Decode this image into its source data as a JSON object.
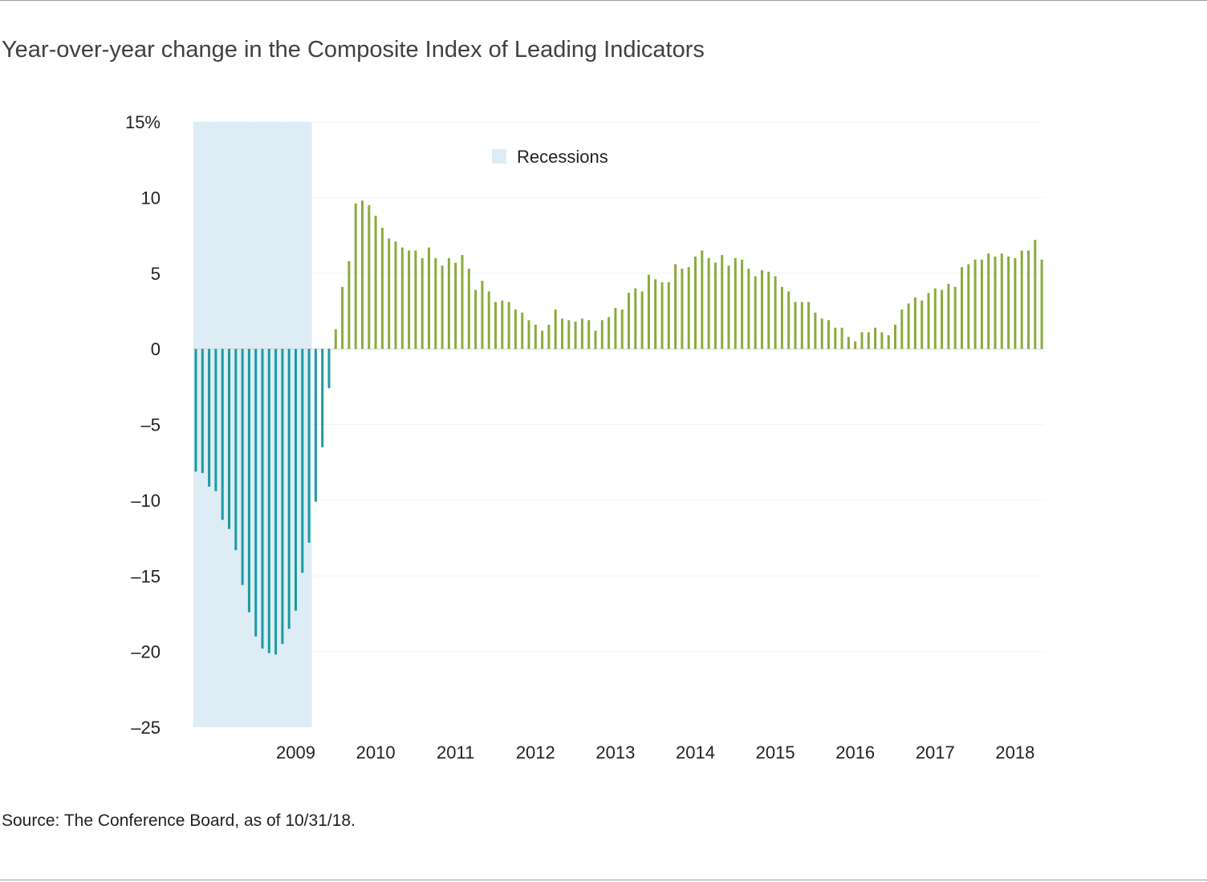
{
  "title": "Year-over-year change in the Composite Index of Leading Indicators",
  "source": "Source: The Conference Board, as of 10/31/18.",
  "colors": {
    "negative": "#1a9aa0",
    "positive": "#8aab3c",
    "recession": "#deedf5",
    "grid": "#e6e6e6"
  },
  "chart_data": {
    "type": "bar",
    "ylim": [
      -25,
      15
    ],
    "y_ticks": [
      {
        "value": 15,
        "label": "15%"
      },
      {
        "value": 10,
        "label": "10"
      },
      {
        "value": 5,
        "label": "5"
      },
      {
        "value": 0,
        "label": "0"
      },
      {
        "value": -5,
        "label": "–5"
      },
      {
        "value": -10,
        "label": "–10"
      },
      {
        "value": -15,
        "label": "–15"
      },
      {
        "value": -20,
        "label": "–20"
      },
      {
        "value": -25,
        "label": "–25"
      }
    ],
    "x_ticks": [
      {
        "index": 15,
        "label": "2009"
      },
      {
        "index": 27,
        "label": "2010"
      },
      {
        "index": 39,
        "label": "2011"
      },
      {
        "index": 51,
        "label": "2012"
      },
      {
        "index": 63,
        "label": "2013"
      },
      {
        "index": 75,
        "label": "2014"
      },
      {
        "index": 87,
        "label": "2015"
      },
      {
        "index": 99,
        "label": "2016"
      },
      {
        "index": 111,
        "label": "2017"
      },
      {
        "index": 123,
        "label": "2018"
      }
    ],
    "recession": {
      "start_index": 0,
      "end_index": 17,
      "label": "Recessions"
    },
    "grid": true,
    "legend": "top-center",
    "values": [
      -8.1,
      -8.2,
      -9.1,
      -9.4,
      -11.3,
      -11.9,
      -13.3,
      -15.6,
      -17.4,
      -19.0,
      -19.8,
      -20.1,
      -20.2,
      -19.5,
      -18.5,
      -17.3,
      -14.8,
      -12.8,
      -10.1,
      -6.5,
      -2.6,
      1.3,
      4.1,
      5.8,
      9.6,
      9.8,
      9.5,
      8.8,
      8.0,
      7.3,
      7.1,
      6.7,
      6.5,
      6.5,
      6.0,
      6.7,
      6.0,
      5.5,
      6.0,
      5.7,
      6.2,
      5.3,
      3.9,
      4.5,
      3.8,
      3.1,
      3.2,
      3.1,
      2.6,
      2.4,
      1.9,
      1.6,
      1.2,
      1.6,
      2.6,
      2.0,
      1.9,
      1.8,
      2.0,
      1.9,
      1.2,
      1.9,
      2.1,
      2.7,
      2.6,
      3.7,
      4.0,
      3.8,
      4.9,
      4.6,
      4.4,
      4.4,
      5.6,
      5.3,
      5.4,
      6.1,
      6.5,
      6.0,
      5.7,
      6.2,
      5.5,
      6.0,
      5.9,
      5.3,
      4.8,
      5.2,
      5.1,
      4.8,
      4.1,
      3.8,
      3.1,
      3.1,
      3.1,
      2.4,
      2.0,
      1.9,
      1.4,
      1.4,
      0.8,
      0.5,
      1.1,
      1.1,
      1.4,
      1.1,
      0.9,
      1.6,
      2.6,
      3.0,
      3.4,
      3.2,
      3.7,
      4.0,
      3.9,
      4.3,
      4.1,
      5.4,
      5.6,
      5.9,
      5.9,
      6.3,
      6.1,
      6.3,
      6.1,
      6.0,
      6.5,
      6.5,
      7.2,
      5.9
    ]
  }
}
